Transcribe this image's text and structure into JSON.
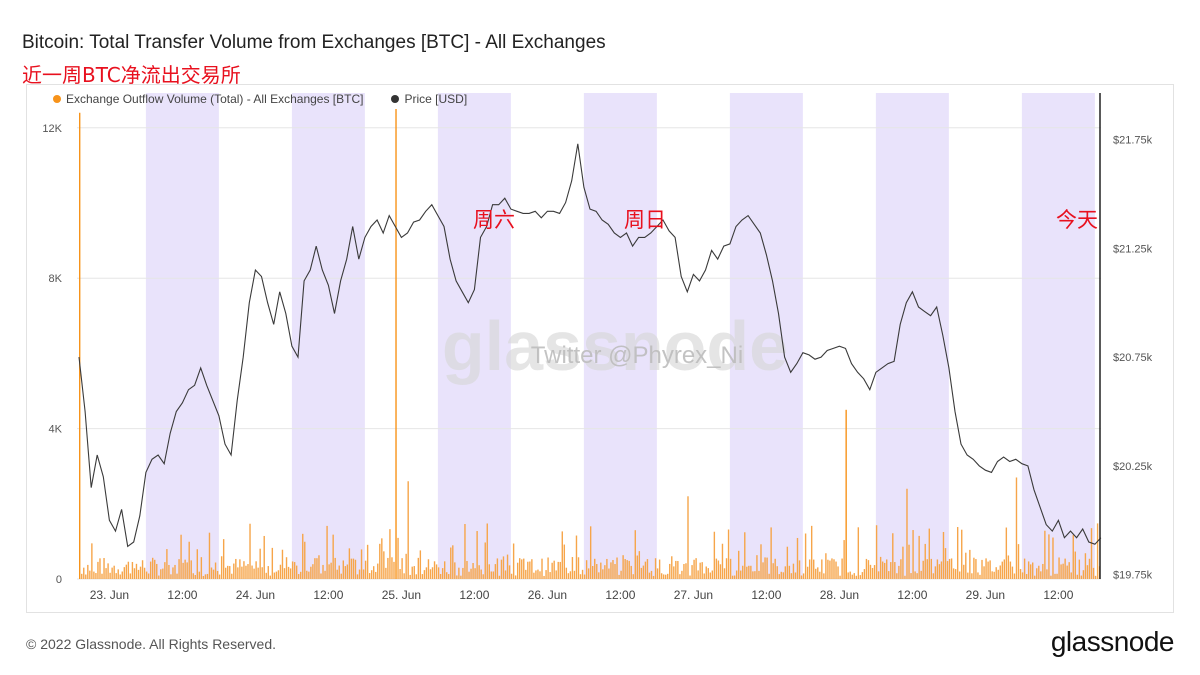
{
  "title": "Bitcoin: Total Transfer Volume from Exchanges [BTC] - All Exchanges",
  "annotation_title": "近一周BTC净流出交易所",
  "legend": [
    {
      "label": "Exchange Outflow Volume (Total) - All Exchanges [BTC]",
      "color": "#f7931a"
    },
    {
      "label": "Price [USD]",
      "color": "#333333"
    }
  ],
  "watermark": "glassnode",
  "watermark_twitter": "Twitter @Phyrex_Ni",
  "footer": "© 2022 Glassnode. All Rights Reserved.",
  "logo": "glassnode",
  "chart_data": {
    "type": "line",
    "x_ticks": [
      "23. Jun",
      "12:00",
      "24. Jun",
      "12:00",
      "25. Jun",
      "12:00",
      "26. Jun",
      "12:00",
      "27. Jun",
      "12:00",
      "28. Jun",
      "12:00",
      "29. Jun",
      "12:00"
    ],
    "y_left_ticks": [
      "0",
      "4K",
      "8K",
      "12K"
    ],
    "y_left_range": [
      0,
      12500
    ],
    "y_right_ticks": [
      "$19.75k",
      "$20.25k",
      "$20.75k",
      "$21.25k",
      "$21.75k"
    ],
    "y_right_range": [
      19730,
      21890
    ],
    "shaded_bands": [
      "night"
    ],
    "annotations": [
      {
        "text": "周六",
        "x": "25. Jun 12:00"
      },
      {
        "text": "周日",
        "x": "26. Jun 12:00"
      },
      {
        "text": "今天",
        "x": "29. Jun 12:00"
      }
    ],
    "series": [
      {
        "name": "Price [USD]",
        "color": "#333333",
        "x_hours_label": "hourly from 22. Jun 19:00",
        "values": [
          20750,
          20500,
          20150,
          20300,
          20200,
          20000,
          19950,
          20050,
          19880,
          19900,
          20020,
          20220,
          20280,
          20300,
          20260,
          20400,
          20500,
          20540,
          20600,
          20620,
          20700,
          20620,
          20550,
          20480,
          20350,
          20300,
          20550,
          20750,
          21000,
          21150,
          21120,
          21000,
          20900,
          21050,
          20950,
          20800,
          20750,
          21100,
          21150,
          21260,
          21150,
          21080,
          20950,
          21100,
          21200,
          21350,
          21200,
          21300,
          21350,
          21380,
          21320,
          21400,
          21350,
          21300,
          21320,
          21370,
          21380,
          21420,
          21450,
          21400,
          21350,
          21200,
          21100,
          21050,
          21000,
          21060,
          21300,
          21350,
          21450,
          21450,
          21480,
          21430,
          21420,
          21410,
          21410,
          21420,
          21390,
          21420,
          21420,
          21410,
          21460,
          21560,
          21730,
          21530,
          21430,
          21420,
          21380,
          21360,
          21320,
          21300,
          21320,
          21260,
          21300,
          21300,
          21320,
          21350,
          21380,
          21330,
          21300,
          21120,
          21050,
          21130,
          21100,
          21150,
          21240,
          21200,
          21260,
          21270,
          21350,
          21380,
          21400,
          21360,
          21320,
          21220,
          21100,
          20950,
          20750,
          20680,
          20720,
          20770,
          20760,
          20740,
          20750,
          20780,
          20790,
          20800,
          20790,
          20720,
          20680,
          20650,
          20600,
          20680,
          20700,
          20720,
          20730,
          20900,
          21000,
          21050,
          20980,
          20960,
          20940,
          20980,
          20850,
          20700,
          20500,
          20350,
          20300,
          20280,
          20250,
          20230,
          20220,
          20270,
          20290,
          20270,
          20280,
          20260,
          20250,
          20140,
          20060,
          19980,
          19950,
          20000,
          19920,
          19950,
          19920,
          19960,
          19900,
          19890,
          19920
        ]
      },
      {
        "name": "Exchange Outflow Volume (Total) - All Exchanges [BTC]",
        "color": "#f7931a",
        "style": "bars",
        "note": "hourly spikes; notable peaks ~12.4K at 22 Jun 19:00, ~12.5K at 24 Jun 23:00, ~4.5K at 28 Jun 01:00",
        "peaks": [
          {
            "time": "22. Jun 19:00",
            "value": 12400
          },
          {
            "time": "24. Jun 23:00",
            "value": 12500
          },
          {
            "time": "28. Jun 01:00",
            "value": 4500
          },
          {
            "time": "25. Jun 01:00",
            "value": 2600
          },
          {
            "time": "26. Jun 23:00",
            "value": 2200
          },
          {
            "time": "28. Jun 11:00",
            "value": 2400
          },
          {
            "time": "29. Jun 05:00",
            "value": 2700
          }
        ]
      }
    ]
  }
}
